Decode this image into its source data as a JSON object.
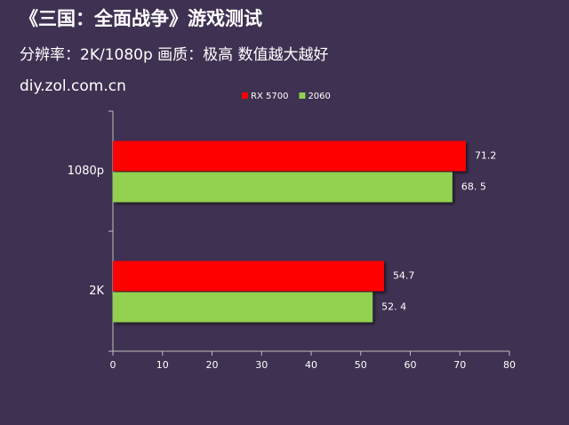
{
  "chart_data": {
    "type": "bar",
    "orientation": "horizontal",
    "title": "《三国：全面战争》游戏测试",
    "subtitle": "分辨率：2K/1080p 画质：极高  数值越大越好",
    "source": "diy.zol.com.cn",
    "categories": [
      "1080p",
      "2K"
    ],
    "series": [
      {
        "name": "RX 5700",
        "color": "#ff0000",
        "values": [
          71.2,
          54.7
        ]
      },
      {
        "name": "2060",
        "color": "#92d050",
        "values": [
          68.5,
          52.4
        ],
        "value_labels": [
          "68. 5",
          "52. 4"
        ]
      }
    ],
    "xlim": [
      0,
      80
    ],
    "xticks": [
      0,
      10,
      20,
      30,
      40,
      50,
      60,
      70,
      80
    ],
    "legend": "top"
  }
}
